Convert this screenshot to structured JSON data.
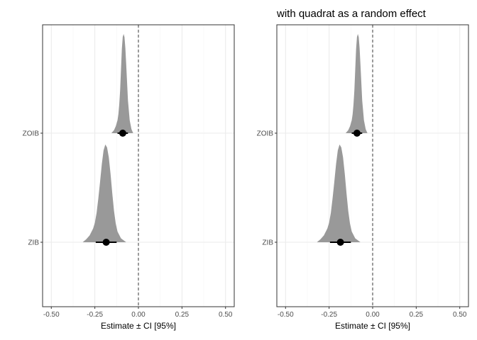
{
  "chart_data": [
    {
      "type": "area",
      "subtype": "posterior-density-ridge",
      "title": "",
      "xlabel": "Estimate ± CI [95%]",
      "ylabel": "",
      "xlim": [
        -0.55,
        0.55
      ],
      "xticks": [
        -0.5,
        -0.25,
        0.0,
        0.25,
        0.5
      ],
      "xtick_labels": [
        "-0.50",
        "-0.25",
        "0.00",
        "0.25",
        "0.50"
      ],
      "reference_line": 0.0,
      "grid": true,
      "categories": [
        "ZIB",
        "ZOIB"
      ],
      "series": [
        {
          "name": "ZOIB",
          "estimate": -0.09,
          "ci": [
            -0.12,
            -0.06
          ],
          "density": {
            "x": [
              -0.155,
              -0.14,
              -0.13,
              -0.12,
              -0.115,
              -0.11,
              -0.105,
              -0.1,
              -0.095,
              -0.09,
              -0.085,
              -0.08,
              -0.075,
              -0.07,
              -0.065,
              -0.06,
              -0.05,
              -0.04,
              -0.03
            ],
            "y": [
              0.0,
              0.03,
              0.07,
              0.13,
              0.19,
              0.29,
              0.43,
              0.64,
              0.85,
              0.97,
              1.0,
              0.97,
              0.86,
              0.69,
              0.51,
              0.33,
              0.13,
              0.04,
              0.0
            ]
          }
        },
        {
          "name": "ZIB",
          "estimate": -0.185,
          "ci": [
            -0.245,
            -0.125
          ],
          "density": {
            "x": [
              -0.32,
              -0.3,
              -0.28,
              -0.26,
              -0.25,
              -0.24,
              -0.23,
              -0.22,
              -0.21,
              -0.2,
              -0.19,
              -0.18,
              -0.17,
              -0.16,
              -0.15,
              -0.14,
              -0.13,
              -0.12,
              -0.1,
              -0.07
            ],
            "y": [
              0.0,
              0.03,
              0.07,
              0.14,
              0.2,
              0.3,
              0.45,
              0.62,
              0.8,
              0.94,
              1.0,
              0.97,
              0.87,
              0.7,
              0.5,
              0.32,
              0.19,
              0.11,
              0.04,
              0.0
            ]
          }
        }
      ]
    },
    {
      "type": "area",
      "subtype": "posterior-density-ridge",
      "title": "with quadrat as a random effect",
      "xlabel": "Estimate ± CI [95%]",
      "ylabel": "",
      "xlim": [
        -0.55,
        0.55
      ],
      "xticks": [
        -0.5,
        -0.25,
        0.0,
        0.25,
        0.5
      ],
      "xtick_labels": [
        "-0.50",
        "-0.25",
        "0.00",
        "0.25",
        "0.50"
      ],
      "reference_line": 0.0,
      "grid": true,
      "categories": [
        "ZIB",
        "ZOIB"
      ],
      "series": [
        {
          "name": "ZOIB",
          "estimate": -0.09,
          "ci": [
            -0.12,
            -0.06
          ],
          "density": {
            "x": [
              -0.155,
              -0.14,
              -0.13,
              -0.12,
              -0.115,
              -0.11,
              -0.105,
              -0.1,
              -0.095,
              -0.09,
              -0.085,
              -0.08,
              -0.075,
              -0.07,
              -0.065,
              -0.06,
              -0.05,
              -0.04,
              -0.03
            ],
            "y": [
              0.0,
              0.03,
              0.07,
              0.13,
              0.19,
              0.29,
              0.43,
              0.64,
              0.85,
              0.97,
              1.0,
              0.97,
              0.86,
              0.69,
              0.51,
              0.33,
              0.13,
              0.04,
              0.0
            ]
          }
        },
        {
          "name": "ZIB",
          "estimate": -0.185,
          "ci": [
            -0.245,
            -0.125
          ],
          "density": {
            "x": [
              -0.32,
              -0.3,
              -0.28,
              -0.26,
              -0.25,
              -0.24,
              -0.23,
              -0.22,
              -0.21,
              -0.2,
              -0.19,
              -0.18,
              -0.17,
              -0.16,
              -0.15,
              -0.14,
              -0.13,
              -0.12,
              -0.1,
              -0.07
            ],
            "y": [
              0.0,
              0.03,
              0.07,
              0.14,
              0.2,
              0.3,
              0.45,
              0.62,
              0.8,
              0.94,
              1.0,
              0.97,
              0.87,
              0.7,
              0.5,
              0.32,
              0.19,
              0.11,
              0.04,
              0.0
            ]
          }
        }
      ]
    }
  ],
  "style": {
    "density_fill": "#999999",
    "point_color": "#000000",
    "grid_major": "#ebebeb",
    "grid_minor": "#f5f5f5",
    "panel_border": "#333333",
    "reference_line_color": "#4d4d4d",
    "tick_label_color": "#4d4d4d"
  }
}
